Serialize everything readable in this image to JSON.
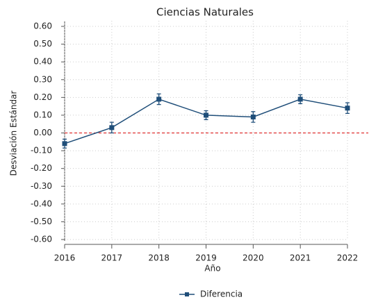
{
  "chart_data": {
    "type": "line",
    "title": "Ciencias Naturales",
    "x_label": "Año",
    "y_label": "Desviación Estándar",
    "x": [
      2016,
      2017,
      2018,
      2019,
      2020,
      2021,
      2022
    ],
    "series": [
      {
        "name": "Diferencia",
        "color": "#1f4e79",
        "values": [
          -0.06,
          0.03,
          0.19,
          0.1,
          0.09,
          0.19,
          0.14
        ],
        "errors": [
          0.025,
          0.03,
          0.03,
          0.025,
          0.03,
          0.025,
          0.03
        ]
      }
    ],
    "xlim": [
      2016,
      2022
    ],
    "xticks": [
      2016,
      2017,
      2018,
      2019,
      2020,
      2021,
      2022
    ],
    "ylim": [
      -0.6,
      0.6
    ],
    "yticks": [
      {
        "value": 0.6,
        "label": "0.60"
      },
      {
        "value": 0.5,
        "label": "0.50"
      },
      {
        "value": 0.4,
        "label": "0.40"
      },
      {
        "value": 0.3,
        "label": "0.30"
      },
      {
        "value": 0.2,
        "label": "0.20"
      },
      {
        "value": 0.1,
        "label": "0.10"
      },
      {
        "value": 0,
        "label": "0.00"
      },
      {
        "value": -0.1,
        "label": "-0.10"
      },
      {
        "value": -0.2,
        "label": "-0.20"
      },
      {
        "value": -0.3,
        "label": "-0.30"
      },
      {
        "value": -0.4,
        "label": "-0.40"
      },
      {
        "value": -0.5,
        "label": "-0.50"
      },
      {
        "value": -0.6,
        "label": "-0.60"
      }
    ],
    "reference_line": {
      "value": 0,
      "color": "#e03030"
    },
    "grid": true,
    "legend": "bottom"
  }
}
